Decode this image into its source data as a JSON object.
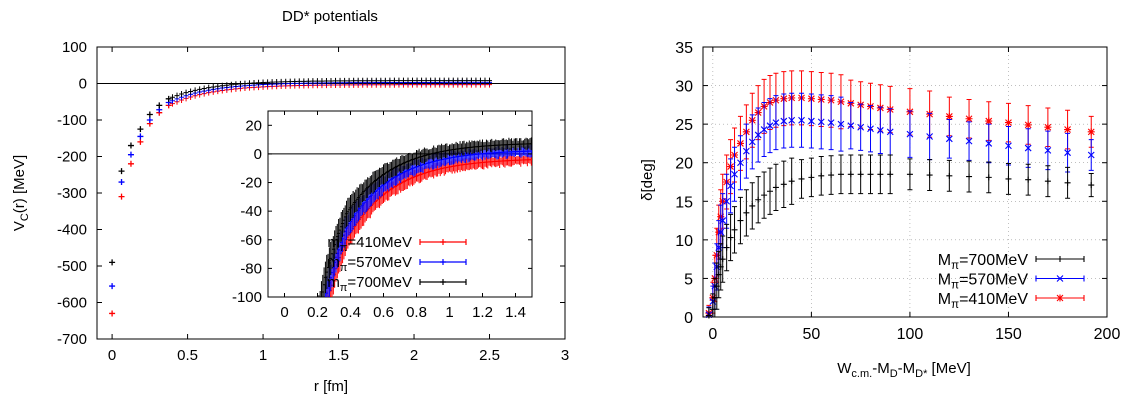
{
  "colors": {
    "red": "#ff0000",
    "blue": "#0000ff",
    "black": "#000000"
  },
  "chart_data": [
    {
      "id": "left",
      "type": "scatter",
      "title": "DD* potentials",
      "xlabel": "r [fm]",
      "ylabel": "V_C(r) [MeV]",
      "xlim": [
        -0.1,
        3
      ],
      "ylim": [
        -700,
        100
      ],
      "xticks": [
        0,
        0.5,
        1,
        1.5,
        2,
        2.5,
        3
      ],
      "xtick_labels": [
        "0",
        "0.5",
        "1",
        "1.5",
        "2",
        "2.5",
        "3"
      ],
      "yticks": [
        100,
        0,
        -100,
        -200,
        -300,
        -400,
        -500,
        -600,
        -700
      ],
      "ytick_labels": [
        "100",
        "0",
        "-100",
        "-200",
        "-300",
        "-400",
        "-500",
        "-600",
        "-700"
      ],
      "grid": false,
      "zero_line": true,
      "series": [
        {
          "name": "m_π=410MeV",
          "color": "red",
          "rmax": 2.5,
          "tail": -3,
          "points": [
            [
              0,
              -630
            ],
            [
              0.0625,
              -310
            ],
            [
              0.125,
              -220
            ],
            [
              0.1875,
              -160
            ],
            [
              0.25,
              -110
            ],
            [
              0.3125,
              -80
            ],
            [
              0.375,
              -60
            ]
          ]
        },
        {
          "name": "m_π=570MeV",
          "color": "blue",
          "rmax": 2.5,
          "tail": 3,
          "points": [
            [
              0,
              -555
            ],
            [
              0.0625,
              -270
            ],
            [
              0.125,
              -195
            ],
            [
              0.1875,
              -145
            ],
            [
              0.25,
              -100
            ],
            [
              0.3125,
              -72
            ],
            [
              0.375,
              -52
            ]
          ]
        },
        {
          "name": "m_π=700MeV",
          "color": "black",
          "rmax": 2.5,
          "tail": 8,
          "points": [
            [
              0,
              -490
            ],
            [
              0.0625,
              -240
            ],
            [
              0.125,
              -170
            ],
            [
              0.1875,
              -125
            ],
            [
              0.25,
              -85
            ],
            [
              0.3125,
              -60
            ],
            [
              0.375,
              -42
            ]
          ]
        }
      ],
      "inset": {
        "type": "scatter",
        "xlim": [
          -0.1,
          1.5
        ],
        "ylim": [
          -100,
          30
        ],
        "xticks": [
          0,
          0.2,
          0.4,
          0.6,
          0.8,
          1,
          1.2,
          1.4
        ],
        "xtick_labels": [
          "0",
          "0.2",
          "0.4",
          "0.6",
          "0.8",
          "1",
          "1.2",
          "1.4"
        ],
        "yticks": [
          20,
          0,
          -20,
          -40,
          -60,
          -80,
          -100
        ],
        "ytick_labels": [
          "20",
          "0",
          "-20",
          "-40",
          "-60",
          "-80",
          "-100"
        ],
        "legend_position": "left",
        "legend": [
          {
            "label": "m_π=410MeV",
            "color": "red"
          },
          {
            "label": "m_π=570MeV",
            "color": "blue"
          },
          {
            "label": "m_π=700MeV",
            "color": "black"
          }
        ]
      }
    },
    {
      "id": "right",
      "type": "scatter",
      "title": "",
      "xlabel": "W_c.m.-M_D-M_D* [MeV]",
      "ylabel": "δ[deg]",
      "xlim": [
        -5,
        200
      ],
      "ylim": [
        0,
        35
      ],
      "xticks": [
        0,
        50,
        100,
        150,
        200
      ],
      "xtick_labels": [
        "0",
        "50",
        "100",
        "150",
        "200"
      ],
      "yticks": [
        0,
        5,
        10,
        15,
        20,
        25,
        30,
        35
      ],
      "ytick_labels": [
        "0",
        "5",
        "10",
        "15",
        "20",
        "25",
        "30",
        "35"
      ],
      "grid": true,
      "legend_position": "bottom-right",
      "legend": [
        {
          "label": "M_π=700MeV",
          "color": "black",
          "marker": "plus"
        },
        {
          "label": "M_π=570MeV",
          "color": "blue",
          "marker": "x"
        },
        {
          "label": "M_π=410MeV",
          "color": "red",
          "marker": "star"
        }
      ],
      "series": [
        {
          "name": "M_π=410MeV",
          "color": "red",
          "marker": "star",
          "points": [
            [
              -2,
              0.5,
              1
            ],
            [
              0,
              2.5,
              2
            ],
            [
              1,
              5,
              3
            ],
            [
              2,
              8,
              3.5
            ],
            [
              3,
              11,
              3.5
            ],
            [
              4,
              13,
              3.5
            ],
            [
              5,
              15,
              3.5
            ],
            [
              7,
              17.5,
              3.5
            ],
            [
              9,
              19.5,
              3.5
            ],
            [
              11,
              21,
              3.5
            ],
            [
              14,
              22.5,
              3.5
            ],
            [
              17,
              24,
              3.5
            ],
            [
              20,
              25.5,
              3.5
            ],
            [
              23,
              26.5,
              3.5
            ],
            [
              26,
              27.3,
              3.5
            ],
            [
              29,
              27.8,
              3.5
            ],
            [
              32,
              28.1,
              3.5
            ],
            [
              36,
              28.3,
              3.5
            ],
            [
              40,
              28.4,
              3.5
            ],
            [
              45,
              28.4,
              3.5
            ],
            [
              50,
              28.3,
              3.5
            ],
            [
              55,
              28.2,
              3.5
            ],
            [
              60,
              28.1,
              3.5
            ],
            [
              65,
              27.9,
              3.5
            ],
            [
              70,
              27.7,
              3
            ],
            [
              75,
              27.5,
              3
            ],
            [
              80,
              27.3,
              3
            ],
            [
              85,
              27.1,
              3
            ],
            [
              90,
              26.9,
              3
            ],
            [
              100,
              26.6,
              3
            ],
            [
              110,
              26.3,
              3
            ],
            [
              120,
              26,
              2.5
            ],
            [
              130,
              25.7,
              2.5
            ],
            [
              140,
              25.4,
              2.5
            ],
            [
              150,
              25.2,
              2.5
            ],
            [
              160,
              24.9,
              2.5
            ],
            [
              170,
              24.6,
              2.5
            ],
            [
              180,
              24.3,
              2.5
            ],
            [
              192,
              24,
              2
            ]
          ]
        },
        {
          "name": "M_π=570MeV",
          "color": "blue",
          "marker": "x",
          "points": [
            [
              -2,
              0.3,
              1
            ],
            [
              0,
              2,
              2
            ],
            [
              1,
              4,
              3
            ],
            [
              2,
              6.5,
              3
            ],
            [
              3,
              9,
              3.5
            ],
            [
              4,
              11,
              3.5
            ],
            [
              5,
              12.5,
              3.5
            ],
            [
              7,
              15,
              3.5
            ],
            [
              9,
              17,
              3.5
            ],
            [
              11,
              18.5,
              3.5
            ],
            [
              14,
              20,
              3.5
            ],
            [
              17,
              21.5,
              3.5
            ],
            [
              20,
              22.7,
              3.5
            ],
            [
              23,
              23.6,
              3.5
            ],
            [
              26,
              24.3,
              3.5
            ],
            [
              29,
              24.8,
              3.5
            ],
            [
              32,
              25.2,
              3.5
            ],
            [
              36,
              25.4,
              3.5
            ],
            [
              40,
              25.5,
              3.5
            ],
            [
              45,
              25.5,
              3.5
            ],
            [
              50,
              25.4,
              3.5
            ],
            [
              55,
              25.3,
              3.5
            ],
            [
              60,
              25.2,
              3.5
            ],
            [
              65,
              25,
              3.5
            ],
            [
              70,
              24.8,
              3
            ],
            [
              75,
              24.6,
              3
            ],
            [
              80,
              24.4,
              3
            ],
            [
              85,
              24.2,
              3
            ],
            [
              90,
              24,
              3
            ],
            [
              100,
              23.7,
              3
            ],
            [
              110,
              23.4,
              3
            ],
            [
              120,
              23.1,
              2.5
            ],
            [
              130,
              22.8,
              2.5
            ],
            [
              140,
              22.5,
              2.5
            ],
            [
              150,
              22.2,
              2.5
            ],
            [
              160,
              21.9,
              2.5
            ],
            [
              170,
              21.6,
              2.5
            ],
            [
              180,
              21.3,
              2.5
            ],
            [
              192,
              21,
              2
            ]
          ]
        },
        {
          "name": "M_π=700MeV",
          "color": "black",
          "marker": "plus",
          "points": [
            [
              -2,
              0.2,
              1
            ],
            [
              0,
              1,
              2
            ],
            [
              1,
              2.5,
              2.5
            ],
            [
              2,
              4,
              3
            ],
            [
              3,
              5.5,
              3
            ],
            [
              4,
              6.5,
              3
            ],
            [
              5,
              7.5,
              3
            ],
            [
              7,
              9,
              3
            ],
            [
              9,
              10.3,
              3
            ],
            [
              11,
              11.3,
              3
            ],
            [
              14,
              12.5,
              3
            ],
            [
              17,
              13.5,
              3
            ],
            [
              20,
              14.4,
              3
            ],
            [
              23,
              15.2,
              3
            ],
            [
              26,
              15.8,
              3
            ],
            [
              29,
              16.3,
              3
            ],
            [
              32,
              16.8,
              3
            ],
            [
              36,
              17.2,
              3
            ],
            [
              40,
              17.6,
              3
            ],
            [
              45,
              17.9,
              2.5
            ],
            [
              50,
              18.1,
              2.5
            ],
            [
              55,
              18.3,
              2.5
            ],
            [
              60,
              18.4,
              2.5
            ],
            [
              65,
              18.5,
              2.5
            ],
            [
              70,
              18.5,
              2.5
            ],
            [
              75,
              18.5,
              2.5
            ],
            [
              80,
              18.5,
              2.5
            ],
            [
              85,
              18.5,
              2.5
            ],
            [
              90,
              18.5,
              2.5
            ],
            [
              100,
              18.5,
              2
            ],
            [
              110,
              18.4,
              2
            ],
            [
              120,
              18.3,
              2
            ],
            [
              130,
              18.2,
              2
            ],
            [
              140,
              18.1,
              2
            ],
            [
              150,
              17.9,
              2
            ],
            [
              160,
              17.8,
              2
            ],
            [
              170,
              17.6,
              2
            ],
            [
              180,
              17.4,
              2
            ],
            [
              192,
              17.1,
              1.5
            ]
          ]
        }
      ]
    }
  ]
}
